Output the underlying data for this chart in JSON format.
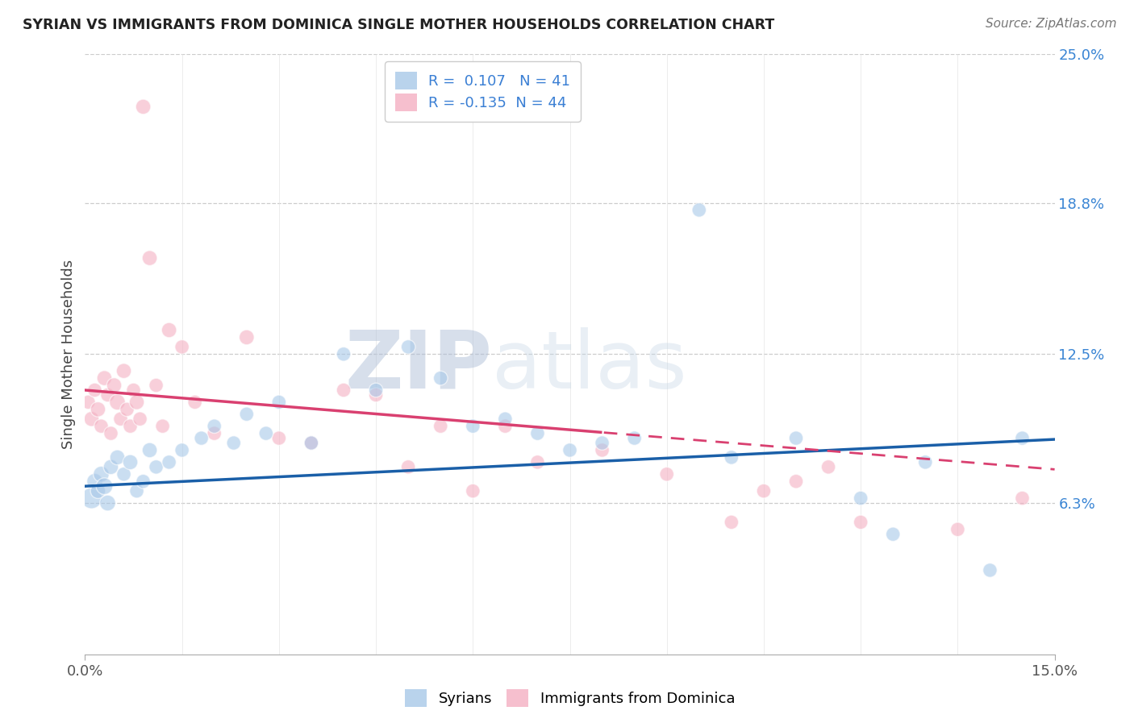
{
  "title": "SYRIAN VS IMMIGRANTS FROM DOMINICA SINGLE MOTHER HOUSEHOLDS CORRELATION CHART",
  "source": "Source: ZipAtlas.com",
  "ylabel": "Single Mother Households",
  "x_min": 0.0,
  "x_max": 15.0,
  "y_min": 0.0,
  "y_max": 25.0,
  "y_ticks": [
    6.3,
    12.5,
    18.8,
    25.0
  ],
  "y_tick_labels": [
    "6.3%",
    "12.5%",
    "18.8%",
    "25.0%"
  ],
  "x_tick_labels": [
    "0.0%",
    "15.0%"
  ],
  "syrians_R": 0.107,
  "syrians_N": 41,
  "dominica_R": -0.135,
  "dominica_N": 44,
  "blue_scatter_color": "#a8c8e8",
  "pink_scatter_color": "#f4b0c2",
  "blue_line_color": "#1a5fa8",
  "pink_line_color": "#d94070",
  "watermark_color": "#ccd8ea",
  "syrians_x": [
    0.1,
    0.15,
    0.2,
    0.25,
    0.3,
    0.35,
    0.4,
    0.5,
    0.6,
    0.7,
    0.8,
    0.9,
    1.0,
    1.1,
    1.3,
    1.5,
    1.8,
    2.0,
    2.3,
    2.5,
    2.8,
    3.0,
    3.5,
    4.0,
    4.5,
    5.0,
    5.5,
    6.0,
    6.5,
    7.0,
    7.5,
    8.0,
    8.5,
    9.5,
    10.0,
    11.0,
    12.0,
    12.5,
    13.0,
    14.0,
    14.5
  ],
  "syrians_y": [
    6.5,
    7.2,
    6.8,
    7.5,
    7.0,
    6.3,
    7.8,
    8.2,
    7.5,
    8.0,
    6.8,
    7.2,
    8.5,
    7.8,
    8.0,
    8.5,
    9.0,
    9.5,
    8.8,
    10.0,
    9.2,
    10.5,
    8.8,
    12.5,
    11.0,
    12.8,
    11.5,
    9.5,
    9.8,
    9.2,
    8.5,
    8.8,
    9.0,
    18.5,
    8.2,
    9.0,
    6.5,
    5.0,
    8.0,
    3.5,
    9.0
  ],
  "syrians_size": [
    350,
    200,
    180,
    200,
    220,
    200,
    180,
    180,
    160,
    180,
    160,
    160,
    180,
    160,
    160,
    160,
    160,
    160,
    160,
    160,
    160,
    160,
    160,
    160,
    160,
    160,
    160,
    160,
    160,
    160,
    160,
    160,
    160,
    160,
    160,
    160,
    160,
    160,
    160,
    160,
    160
  ],
  "dominica_x": [
    0.05,
    0.1,
    0.15,
    0.2,
    0.25,
    0.3,
    0.35,
    0.4,
    0.45,
    0.5,
    0.55,
    0.6,
    0.65,
    0.7,
    0.75,
    0.8,
    0.85,
    0.9,
    1.0,
    1.1,
    1.2,
    1.3,
    1.5,
    1.7,
    2.0,
    2.5,
    3.0,
    3.5,
    4.0,
    4.5,
    5.0,
    5.5,
    6.0,
    6.5,
    7.0,
    8.0,
    9.0,
    10.0,
    10.5,
    11.0,
    11.5,
    12.0,
    13.5,
    14.5
  ],
  "dominica_y": [
    10.5,
    9.8,
    11.0,
    10.2,
    9.5,
    11.5,
    10.8,
    9.2,
    11.2,
    10.5,
    9.8,
    11.8,
    10.2,
    9.5,
    11.0,
    10.5,
    9.8,
    22.8,
    16.5,
    11.2,
    9.5,
    13.5,
    12.8,
    10.5,
    9.2,
    13.2,
    9.0,
    8.8,
    11.0,
    10.8,
    7.8,
    9.5,
    6.8,
    9.5,
    8.0,
    8.5,
    7.5,
    5.5,
    6.8,
    7.2,
    7.8,
    5.5,
    5.2,
    6.5
  ],
  "dominica_size": [
    160,
    180,
    160,
    180,
    160,
    180,
    160,
    160,
    180,
    200,
    160,
    180,
    160,
    160,
    160,
    180,
    160,
    180,
    180,
    160,
    160,
    180,
    160,
    160,
    160,
    180,
    160,
    160,
    160,
    160,
    160,
    160,
    160,
    160,
    160,
    160,
    160,
    160,
    160,
    160,
    160,
    160,
    160,
    160
  ],
  "dashed_start_x": 8.0,
  "blue_line_intercept": 7.0,
  "blue_line_slope": 0.13,
  "pink_line_intercept": 11.0,
  "pink_line_slope": -0.22
}
